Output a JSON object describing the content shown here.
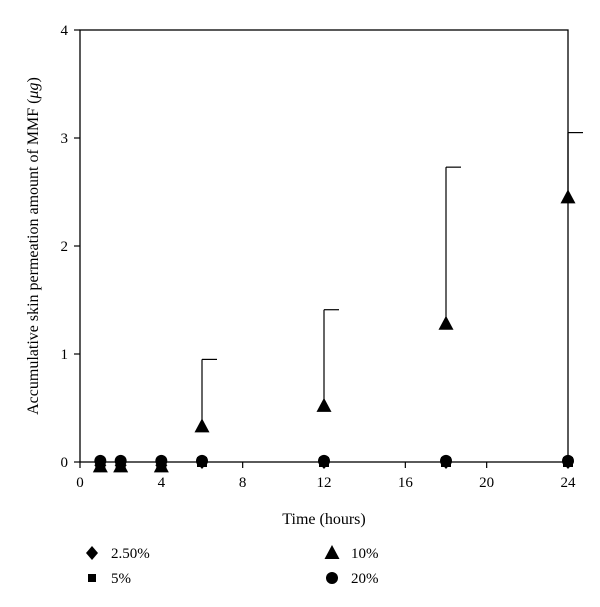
{
  "chart_data": {
    "type": "scatter",
    "title": "",
    "xlabel": "Time (hours)",
    "ylabel_prefix": "Accumulative skin permeation amount of MMF (",
    "ylabel_unit": "μg",
    "ylabel_suffix": ")",
    "xlim": [
      0,
      24
    ],
    "ylim": [
      0,
      4
    ],
    "x_ticks": [
      0,
      4,
      8,
      12,
      16,
      20,
      24
    ],
    "y_ticks": [
      0,
      1,
      2,
      3,
      4
    ],
    "grid": false,
    "legend_position": "bottom",
    "series": [
      {
        "name": "2.50%",
        "marker": "diamond",
        "color": "#000000",
        "x": [
          1,
          2,
          4,
          6,
          12,
          18,
          24
        ],
        "y": [
          -0.03,
          -0.03,
          -0.03,
          0.0,
          0.0,
          0.0,
          0.0
        ],
        "error_upper": null
      },
      {
        "name": "5%",
        "marker": "square",
        "color": "#000000",
        "x": [
          1,
          2,
          4,
          6,
          12,
          18,
          24
        ],
        "y": [
          -0.02,
          -0.02,
          -0.02,
          0.0,
          0.0,
          0.0,
          0.0
        ],
        "error_upper": null
      },
      {
        "name": "10%",
        "marker": "triangle",
        "color": "#000000",
        "x": [
          1,
          2,
          4,
          6,
          12,
          18,
          24
        ],
        "y": [
          -0.04,
          -0.04,
          -0.04,
          0.33,
          0.52,
          1.28,
          2.45
        ],
        "error_upper": [
          null,
          null,
          null,
          0.95,
          1.41,
          2.73,
          3.05
        ]
      },
      {
        "name": "20%",
        "marker": "circle",
        "color": "#000000",
        "x": [
          1,
          2,
          4,
          6,
          12,
          18,
          24
        ],
        "y": [
          0.01,
          0.01,
          0.01,
          0.01,
          0.01,
          0.01,
          0.01
        ],
        "error_upper": null
      }
    ]
  }
}
